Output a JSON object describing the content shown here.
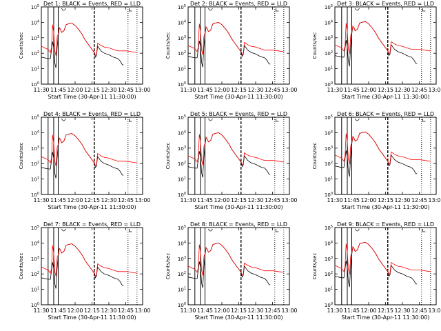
{
  "figure": {
    "type_label": "multi-panel line plot grid (3x3)",
    "xlabel": "Start Time (30-Apr-11 11:30:00)",
    "ylabel": "Counts/sec",
    "colors": {
      "events": "#000000",
      "lld": "#ff0000",
      "axis": "#000000",
      "background": "#ffffff"
    }
  },
  "chart_data": [
    {
      "panel": 1,
      "type": "line",
      "title": "Det  1: BLACK = Events, RED = LLD",
      "xlabel": "Start Time (30-Apr-11 11:30:00)",
      "ylabel": "Counts/sec",
      "x_ticks": [
        "11:30",
        "11:45",
        "12:00",
        "12:15",
        "12:30",
        "12:45",
        "13:00"
      ],
      "y_ticks": [
        "10^0",
        "10^1",
        "10^2",
        "10^3",
        "10^4",
        "10^5"
      ],
      "ylim": [
        1,
        100000
      ],
      "yscale": "log",
      "xlim_minutes": [
        0,
        90
      ],
      "series": [
        {
          "name": "Events",
          "color": "#000000"
        },
        {
          "name": "LLD",
          "color": "#ff0000"
        }
      ]
    },
    {
      "panel": 2,
      "type": "line",
      "title": "Det  2: BLACK = Events, RED = LLD",
      "xlabel": "Start Time (30-Apr-11 11:30:00)",
      "ylabel": "Counts/sec",
      "x_ticks": [
        "11:30",
        "11:45",
        "12:00",
        "12:15",
        "12:30",
        "12:45",
        "13:00"
      ],
      "y_ticks": [
        "10^0",
        "10^1",
        "10^2",
        "10^3",
        "10^4",
        "10^5"
      ],
      "ylim": [
        1,
        100000
      ],
      "yscale": "log",
      "xlim_minutes": [
        0,
        90
      ],
      "series": [
        {
          "name": "Events",
          "color": "#000000"
        },
        {
          "name": "LLD",
          "color": "#ff0000"
        }
      ]
    },
    {
      "panel": 3,
      "type": "line",
      "title": "Det  3: BLACK = Events, RED = LLD",
      "xlabel": "Start Time (30-Apr-11 11:30:00)",
      "ylabel": "Counts/sec",
      "x_ticks": [
        "11:30",
        "11:45",
        "12:00",
        "12:15",
        "12:30",
        "12:45",
        "13:00"
      ],
      "y_ticks": [
        "10^0",
        "10^1",
        "10^2",
        "10^3",
        "10^4",
        "10^5"
      ],
      "ylim": [
        1,
        100000
      ],
      "yscale": "log",
      "xlim_minutes": [
        0,
        90
      ],
      "series": [
        {
          "name": "Events",
          "color": "#000000"
        },
        {
          "name": "LLD",
          "color": "#ff0000"
        }
      ]
    },
    {
      "panel": 4,
      "type": "line",
      "title": "Det  4: BLACK = Events, RED = LLD",
      "xlabel": "Start Time (30-Apr-11 11:30:00)",
      "ylabel": "Counts/sec",
      "x_ticks": [
        "11:30",
        "11:45",
        "12:00",
        "12:15",
        "12:30",
        "12:45",
        "13:00"
      ],
      "y_ticks": [
        "10^0",
        "10^1",
        "10^2",
        "10^3",
        "10^4",
        "10^5"
      ],
      "ylim": [
        1,
        100000
      ],
      "yscale": "log",
      "xlim_minutes": [
        0,
        90
      ],
      "series": [
        {
          "name": "Events",
          "color": "#000000"
        },
        {
          "name": "LLD",
          "color": "#ff0000"
        }
      ]
    },
    {
      "panel": 5,
      "type": "line",
      "title": "Det  5: BLACK = Events, RED = LLD",
      "xlabel": "Start Time (30-Apr-11 11:30:00)",
      "ylabel": "Counts/sec",
      "x_ticks": [
        "11:30",
        "11:45",
        "12:00",
        "12:15",
        "12:30",
        "12:45",
        "13:00"
      ],
      "y_ticks": [
        "10^0",
        "10^1",
        "10^2",
        "10^3",
        "10^4",
        "10^5"
      ],
      "ylim": [
        1,
        100000
      ],
      "yscale": "log",
      "xlim_minutes": [
        0,
        90
      ],
      "series": [
        {
          "name": "Events",
          "color": "#000000"
        },
        {
          "name": "LLD",
          "color": "#ff0000"
        }
      ]
    },
    {
      "panel": 6,
      "type": "line",
      "title": "Det  6: BLACK = Events, RED = LLD",
      "xlabel": "Start Time (30-Apr-11 11:30:00)",
      "ylabel": "Counts/sec",
      "x_ticks": [
        "11:30",
        "11:45",
        "12:00",
        "12:15",
        "12:30",
        "12:45",
        "13:00"
      ],
      "y_ticks": [
        "10^0",
        "10^1",
        "10^2",
        "10^3",
        "10^4",
        "10^5"
      ],
      "ylim": [
        1,
        100000
      ],
      "yscale": "log",
      "xlim_minutes": [
        0,
        90
      ],
      "series": [
        {
          "name": "Events",
          "color": "#000000"
        },
        {
          "name": "LLD",
          "color": "#ff0000"
        }
      ]
    },
    {
      "panel": 7,
      "type": "line",
      "title": "Det  7: BLACK = Events, RED = LLD",
      "xlabel": "Start Time (30-Apr-11 11:30:00)",
      "ylabel": "Counts/sec",
      "x_ticks": [
        "11:30",
        "11:45",
        "12:00",
        "12:15",
        "12:30",
        "12:45",
        "13:00"
      ],
      "y_ticks": [
        "10^0",
        "10^1",
        "10^2",
        "10^3",
        "10^4",
        "10^5"
      ],
      "ylim": [
        1,
        100000
      ],
      "yscale": "log",
      "xlim_minutes": [
        0,
        90
      ],
      "series": [
        {
          "name": "Events",
          "color": "#000000"
        },
        {
          "name": "LLD",
          "color": "#ff0000"
        }
      ]
    },
    {
      "panel": 8,
      "type": "line",
      "title": "Det  8: BLACK = Events, RED = LLD",
      "xlabel": "Start Time (30-Apr-11 11:30:00)",
      "ylabel": "Counts/sec",
      "x_ticks": [
        "11:30",
        "11:45",
        "12:00",
        "12:15",
        "12:30",
        "12:45",
        "13:00"
      ],
      "y_ticks": [
        "10^0",
        "10^1",
        "10^2",
        "10^3",
        "10^4",
        "10^5"
      ],
      "ylim": [
        1,
        100000
      ],
      "yscale": "log",
      "xlim_minutes": [
        0,
        90
      ],
      "series": [
        {
          "name": "Events",
          "color": "#000000"
        },
        {
          "name": "LLD",
          "color": "#ff0000"
        }
      ]
    },
    {
      "panel": 9,
      "type": "line",
      "title": "Det  9: BLACK = Events, RED = LLD",
      "xlabel": "Start Time (30-Apr-11 11:30:00)",
      "ylabel": "Counts/sec",
      "x_ticks": [
        "11:30",
        "11:45",
        "12:00",
        "12:15",
        "12:30",
        "12:45",
        "13:00"
      ],
      "y_ticks": [
        "10^0",
        "10^1",
        "10^2",
        "10^3",
        "10^4",
        "10^5"
      ],
      "ylim": [
        1,
        100000
      ],
      "yscale": "log",
      "xlim_minutes": [
        0,
        90
      ],
      "series": [
        {
          "name": "Events",
          "color": "#000000"
        },
        {
          "name": "LLD",
          "color": "#ff0000"
        }
      ]
    }
  ]
}
